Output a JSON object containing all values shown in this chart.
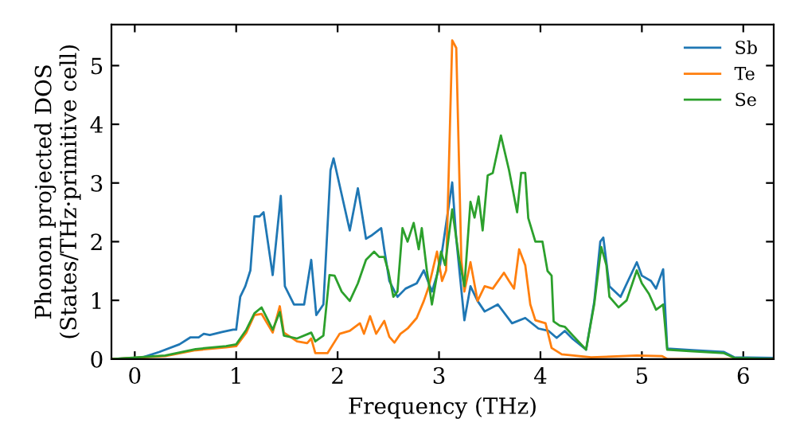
{
  "chart_data": {
    "type": "line",
    "xlabel": "Frequency (THz)",
    "ylabel": "Phonon projected DOS\n(States/THz·primitive cell)",
    "xlim": [
      -0.23,
      6.3
    ],
    "ylim": [
      0,
      5.7
    ],
    "xticks": [
      0,
      1,
      2,
      3,
      4,
      5,
      6
    ],
    "yticks": [
      0,
      1,
      2,
      3,
      4,
      5
    ],
    "grid": false,
    "legend": "top right",
    "marker": "none",
    "line_style": "solid",
    "series": [
      {
        "name": "Sb",
        "color": "#1f77b4",
        "x": [
          -0.23,
          0.08,
          0.24,
          0.44,
          0.55,
          0.63,
          0.68,
          0.74,
          0.86,
          0.97,
          1.0,
          1.04,
          1.09,
          1.14,
          1.18,
          1.23,
          1.27,
          1.36,
          1.44,
          1.48,
          1.57,
          1.67,
          1.74,
          1.79,
          1.86,
          1.93,
          1.96,
          2.12,
          2.2,
          2.28,
          2.33,
          2.43,
          2.46,
          2.51,
          2.59,
          2.67,
          2.78,
          2.85,
          2.93,
          3.01,
          3.13,
          3.17,
          3.25,
          3.31,
          3.38,
          3.45,
          3.58,
          3.72,
          3.85,
          3.98,
          4.08,
          4.16,
          4.24,
          4.32,
          4.45,
          4.53,
          4.59,
          4.62,
          4.68,
          4.79,
          4.95,
          5.0,
          5.09,
          5.14,
          5.21,
          5.25,
          5.5,
          5.81,
          5.91,
          6.3
        ],
        "values": [
          0.0,
          0.03,
          0.12,
          0.25,
          0.37,
          0.37,
          0.43,
          0.41,
          0.46,
          0.5,
          0.5,
          1.06,
          1.24,
          1.51,
          2.43,
          2.43,
          2.5,
          1.43,
          2.78,
          1.24,
          0.93,
          0.93,
          1.69,
          0.75,
          0.93,
          3.22,
          3.42,
          2.19,
          2.91,
          2.05,
          2.1,
          2.23,
          1.87,
          1.33,
          1.06,
          1.2,
          1.29,
          1.51,
          1.15,
          1.6,
          3.01,
          2.05,
          0.66,
          1.24,
          0.99,
          0.81,
          0.93,
          0.61,
          0.7,
          0.52,
          0.48,
          0.36,
          0.48,
          0.34,
          0.16,
          0.97,
          2.0,
          2.07,
          1.24,
          1.06,
          1.65,
          1.42,
          1.33,
          1.2,
          1.53,
          0.18,
          0.15,
          0.12,
          0.03,
          0.02
        ]
      },
      {
        "name": "Te",
        "color": "#ff7f0e",
        "x": [
          -0.23,
          0.3,
          0.6,
          0.9,
          1.0,
          1.1,
          1.18,
          1.25,
          1.36,
          1.43,
          1.47,
          1.6,
          1.7,
          1.74,
          1.78,
          1.9,
          2.02,
          2.12,
          2.22,
          2.26,
          2.32,
          2.38,
          2.46,
          2.51,
          2.56,
          2.62,
          2.69,
          2.78,
          2.85,
          2.9,
          2.98,
          3.03,
          3.07,
          3.13,
          3.17,
          3.22,
          3.25,
          3.31,
          3.38,
          3.45,
          3.53,
          3.64,
          3.69,
          3.74,
          3.79,
          3.85,
          3.9,
          3.95,
          4.05,
          4.11,
          4.21,
          4.5,
          4.95,
          5.2,
          5.25,
          6.3
        ],
        "values": [
          0.0,
          0.05,
          0.15,
          0.2,
          0.22,
          0.45,
          0.75,
          0.77,
          0.45,
          0.9,
          0.45,
          0.3,
          0.27,
          0.35,
          0.1,
          0.1,
          0.43,
          0.48,
          0.61,
          0.43,
          0.73,
          0.43,
          0.65,
          0.38,
          0.28,
          0.43,
          0.52,
          0.7,
          0.99,
          1.24,
          1.83,
          1.33,
          1.51,
          5.43,
          5.3,
          1.69,
          1.15,
          1.65,
          0.99,
          1.24,
          1.2,
          1.47,
          1.33,
          1.2,
          1.87,
          1.6,
          0.93,
          0.66,
          0.61,
          0.19,
          0.08,
          0.03,
          0.06,
          0.05,
          0.0,
          0.0
        ]
      },
      {
        "name": "Se",
        "color": "#2ca02c",
        "x": [
          -0.23,
          0.3,
          0.6,
          0.9,
          1.0,
          1.1,
          1.18,
          1.25,
          1.36,
          1.43,
          1.47,
          1.6,
          1.74,
          1.78,
          1.86,
          1.92,
          1.97,
          2.04,
          2.12,
          2.2,
          2.28,
          2.36,
          2.41,
          2.46,
          2.5,
          2.55,
          2.59,
          2.64,
          2.69,
          2.75,
          2.8,
          2.83,
          2.88,
          2.93,
          3.02,
          3.06,
          3.13,
          3.2,
          3.25,
          3.31,
          3.35,
          3.39,
          3.43,
          3.48,
          3.53,
          3.61,
          3.69,
          3.77,
          3.81,
          3.85,
          3.88,
          3.95,
          4.02,
          4.07,
          4.11,
          4.13,
          4.19,
          4.24,
          4.32,
          4.45,
          4.53,
          4.6,
          4.65,
          4.68,
          4.77,
          4.85,
          4.95,
          5.0,
          5.07,
          5.14,
          5.21,
          5.25,
          5.5,
          5.81,
          5.91,
          6.3
        ],
        "values": [
          0.0,
          0.06,
          0.17,
          0.22,
          0.25,
          0.5,
          0.78,
          0.88,
          0.5,
          0.8,
          0.4,
          0.35,
          0.45,
          0.3,
          0.4,
          1.43,
          1.42,
          1.15,
          0.99,
          1.29,
          1.69,
          1.83,
          1.74,
          1.74,
          1.5,
          1.06,
          1.15,
          2.23,
          2.0,
          2.32,
          1.87,
          2.23,
          1.51,
          0.93,
          1.83,
          1.6,
          2.55,
          1.69,
          1.24,
          2.68,
          2.41,
          2.77,
          2.19,
          3.13,
          3.17,
          3.81,
          3.22,
          2.5,
          3.17,
          3.17,
          2.4,
          2.0,
          2.0,
          1.5,
          1.42,
          0.64,
          0.57,
          0.55,
          0.4,
          0.16,
          0.93,
          1.91,
          1.6,
          1.06,
          0.88,
          1.0,
          1.51,
          1.29,
          1.11,
          0.84,
          0.93,
          0.16,
          0.13,
          0.1,
          0.02,
          0.0
        ]
      }
    ]
  }
}
